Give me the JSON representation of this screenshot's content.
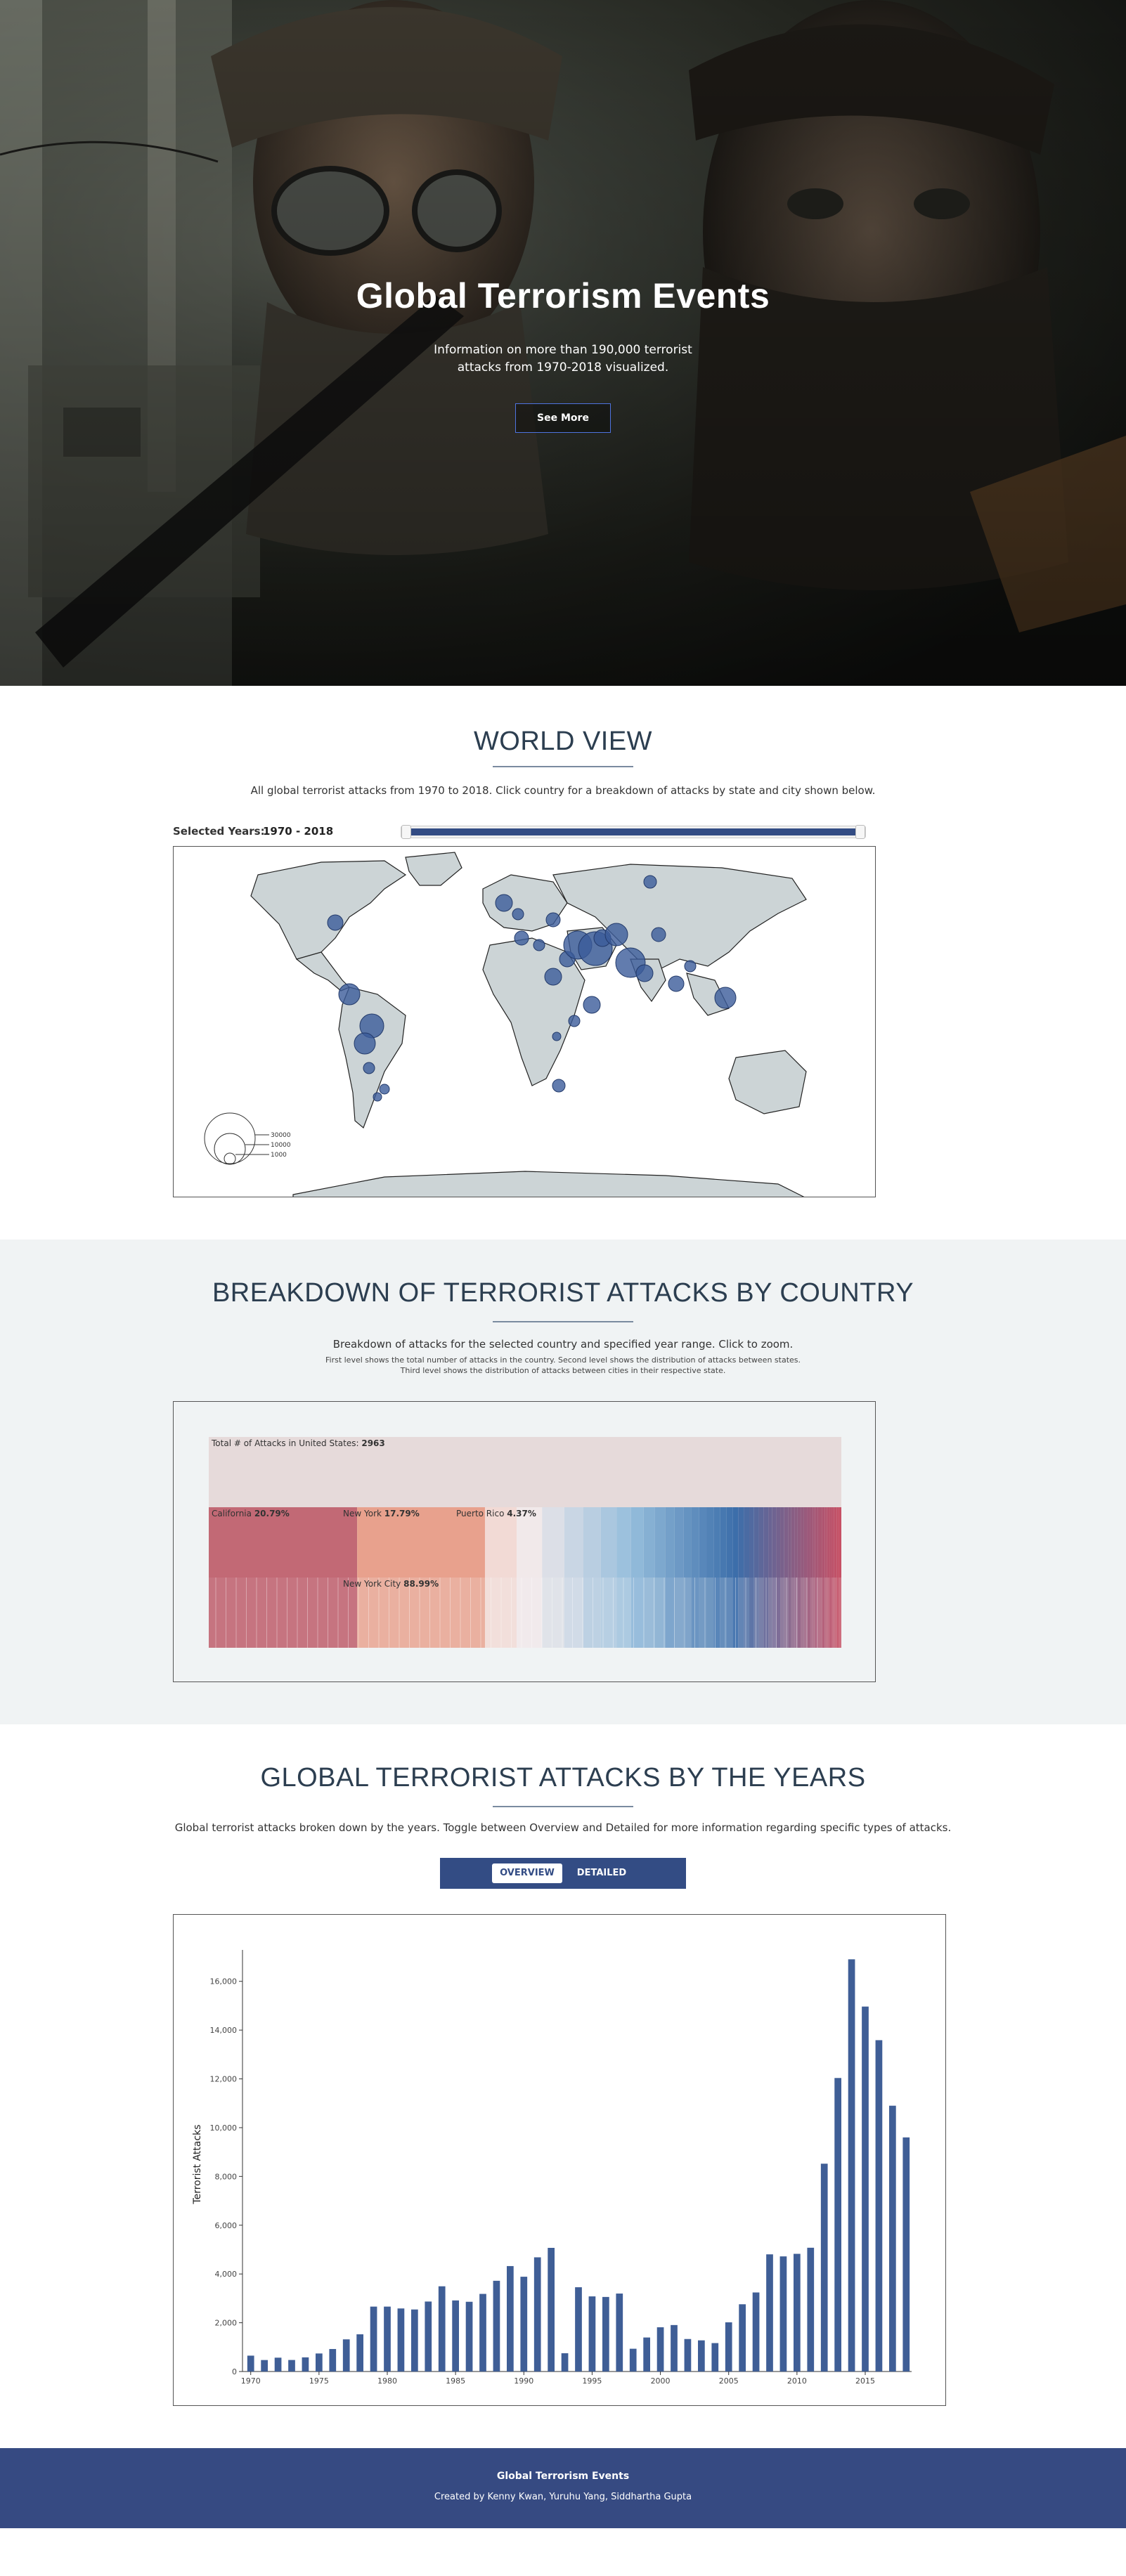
{
  "hero": {
    "title": "Global Terrorism Events",
    "subtitle_line1": "Information on more than 190,000 terrorist",
    "subtitle_line2": "attacks from 1970-2018 visualized.",
    "button_label": "See More"
  },
  "world_view": {
    "title": "WORLD VIEW",
    "description": "All global terrorist attacks from 1970 to 2018. Click country for a breakdown of attacks by state and city shown below.",
    "years_label": "Selected Years:",
    "years_value": "1970 - 2018",
    "legend": [
      "30000",
      "10000",
      "1000"
    ]
  },
  "breakdown": {
    "title": "BREAKDOWN OF TERRORIST ATTACKS BY COUNTRY",
    "description": "Breakdown of attacks for the selected country and specified year range. Click to zoom.",
    "note_line1": "First level shows the total number of attacks in the country. Second level shows the distribution of attacks between states.",
    "note_line2": "Third level shows the distribution of attacks between cities in their respective state.",
    "total_label": "Total # of Attacks in United States:",
    "total_value": "2963",
    "states": [
      {
        "name": "California",
        "pct": "20.79%"
      },
      {
        "name": "New York",
        "pct": "17.79%"
      },
      {
        "name": "Puerto Rico",
        "pct": "4.37%"
      }
    ],
    "city": {
      "name": "New York City",
      "pct": "88.99%"
    }
  },
  "timeline": {
    "title": "GLOBAL TERRORIST ATTACKS BY THE YEARS",
    "description": "Global terrorist attacks broken down by the years. Toggle between Overview and Detailed for more information regarding specific types of attacks.",
    "toggle_overview": "OVERVIEW",
    "toggle_detailed": "DETAILED"
  },
  "chart_data": {
    "type": "bar",
    "title": "",
    "xlabel": "",
    "ylabel": "Terrorist Attacks",
    "ylim": [
      0,
      17000
    ],
    "yticks": [
      "0",
      "2,000",
      "4,000",
      "6,000",
      "8,000",
      "10,000",
      "12,000",
      "14,000",
      "16,000"
    ],
    "xticks": [
      "1970",
      "1975",
      "1980",
      "1985",
      "1990",
      "1995",
      "2000",
      "2005",
      "2010",
      "2015"
    ],
    "color": "#3f5e96",
    "categories": [
      1970,
      1971,
      1972,
      1973,
      1974,
      1975,
      1976,
      1977,
      1978,
      1979,
      1980,
      1981,
      1982,
      1983,
      1984,
      1985,
      1986,
      1987,
      1988,
      1989,
      1990,
      1991,
      1992,
      1993,
      1994,
      1995,
      1996,
      1997,
      1998,
      1999,
      2000,
      2001,
      2002,
      2003,
      2004,
      2005,
      2006,
      2007,
      2008,
      2009,
      2010,
      2011,
      2012,
      2013,
      2014,
      2015,
      2016,
      2017,
      2018
    ],
    "values": [
      651,
      471,
      568,
      473,
      581,
      740,
      923,
      1319,
      1526,
      2662,
      2662,
      2586,
      2544,
      2870,
      3495,
      2915,
      2860,
      3183,
      3721,
      4324,
      3887,
      4683,
      5071,
      750,
      3456,
      3081,
      3058,
      3197,
      934,
      1395,
      1814,
      1906,
      1333,
      1278,
      1166,
      2017,
      2758,
      3242,
      4805,
      4721,
      4826,
      5076,
      8522,
      12036,
      16903,
      14965,
      13587,
      10900,
      9600
    ]
  },
  "footer": {
    "title": "Global Terrorism Events",
    "credit": "Created by Kenny Kwan, Yuruhu Yang, Siddhartha Gupta"
  }
}
